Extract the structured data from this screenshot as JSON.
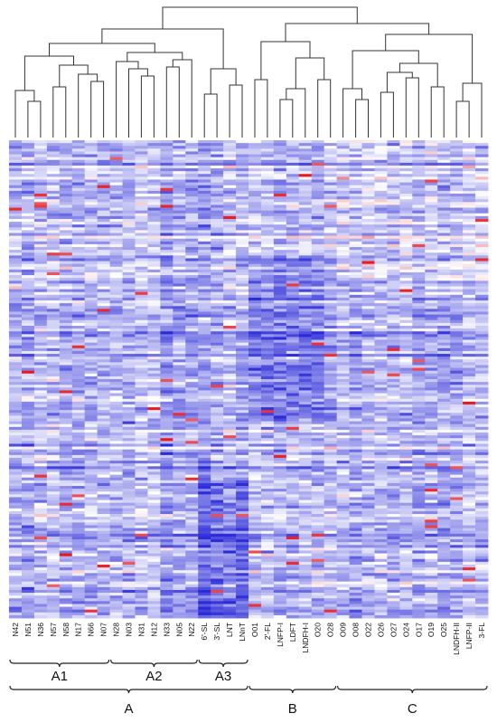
{
  "chart_data": {
    "type": "heatmap",
    "title": "",
    "xlabel": "",
    "ylabel": "",
    "columns": [
      "N42",
      "N51",
      "N36",
      "N57",
      "N58",
      "N17",
      "N66",
      "N07",
      "N28",
      "N03",
      "N31",
      "N12",
      "N33",
      "N05",
      "N22",
      "6'-SL",
      "3'-SL",
      "LNT",
      "LNnT",
      "O01",
      "2'-FL",
      "LNFP-I",
      "LDFT",
      "LNDFH-I",
      "O20",
      "O28",
      "O09",
      "O08",
      "O22",
      "O26",
      "O27",
      "O24",
      "O17",
      "O19",
      "O25",
      "LNDFH-II",
      "LNFP-II",
      "3-FL"
    ],
    "n_rows": 170,
    "color_scale": {
      "low": "#2b2bd8",
      "mid": "#ffffff",
      "high": "#e8181c"
    },
    "subgroups": [
      {
        "label": "A1",
        "start": 0,
        "end": 7
      },
      {
        "label": "A2",
        "start": 8,
        "end": 14
      },
      {
        "label": "A3",
        "start": 15,
        "end": 18
      }
    ],
    "groups": [
      {
        "label": "A",
        "start": 0,
        "end": 18
      },
      {
        "label": "B",
        "start": 19,
        "end": 25
      },
      {
        "label": "C",
        "start": 26,
        "end": 37
      }
    ],
    "dendrogram": "hierarchical clustering of columns shown above the heatmap"
  }
}
